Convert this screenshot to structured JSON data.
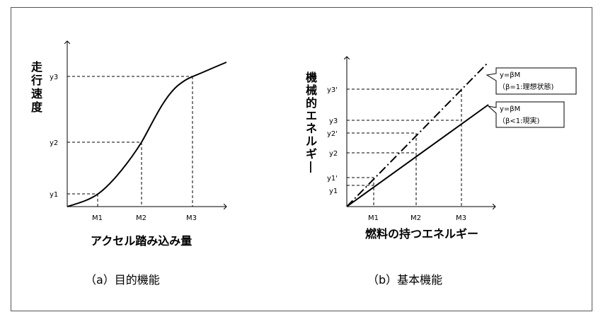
{
  "left_chart": {
    "ylabel": "走行速度",
    "xlabel": "アクセル踏み込み量",
    "caption": "（a）目的機能",
    "x_ticks": [
      "M1",
      "M2",
      "M3"
    ],
    "y_ticks": [
      "y1",
      "y2",
      "y3"
    ]
  },
  "right_chart": {
    "ylabel": "機械的エネルギー",
    "xlabel": "燃料の持つエネルギー",
    "caption": "（b）基本機能",
    "x_ticks": [
      "M1",
      "M2",
      "M3"
    ],
    "y_ticks": [
      "y3'",
      "y3",
      "y2'",
      "y2",
      "y1'",
      "y1"
    ],
    "callout_ideal": {
      "line1": "y=βM",
      "line2": "（β=1:理想状態)"
    },
    "callout_real": {
      "line1": "y=βM",
      "line2": "（β<1:現実)"
    }
  }
}
